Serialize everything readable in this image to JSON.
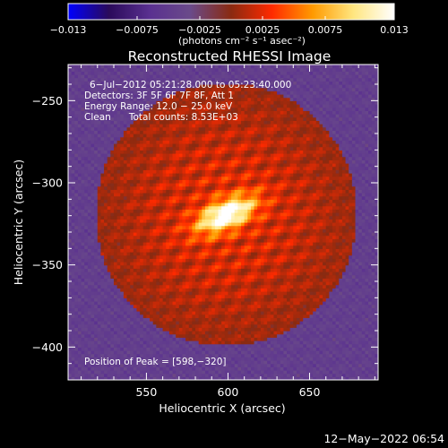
{
  "chart_data": {
    "type": "heatmap",
    "title": "Reconstructed RHESSI Image",
    "xlabel": "Heliocentric X (arcsec)",
    "ylabel": "Heliocentric Y (arcsec)",
    "xlim": [
      502,
      692
    ],
    "ylim": [
      -420,
      -228
    ],
    "x_ticks": [
      550,
      600,
      650
    ],
    "y_ticks": [
      -250,
      -300,
      -350,
      -400
    ],
    "colorbar": {
      "min": -0.013,
      "max": 0.013,
      "tick_values": [
        -0.013,
        -0.0075,
        -0.0025,
        0.0025,
        0.0075,
        0.013
      ],
      "tick_labels": [
        "−0.013",
        "−0.0075",
        "−0.0025",
        "0.0025",
        "0.0075",
        "0.013"
      ],
      "units_label": "(photons cm⁻² s⁻¹ asec⁻²)"
    },
    "annotations": {
      "time_range": "6−Jul−2012 05:21:28.000 to 05:23:40.000",
      "detectors": "Detectors: 3F 5F 6F 7F 8F, Att 1",
      "energy_range": "Energy Range: 12.0 − 25.0 keV",
      "method_counts": "Clean      Total counts: 8.53E+03",
      "peak_label": "Position of Peak = [598,−320]"
    },
    "peak": [
      598,
      -320
    ],
    "timestamp": "12−May−2022 06:54",
    "colors": {
      "background": "#000000",
      "colormap": [
        "#0000ff",
        "#2a0a5a",
        "#5a3090",
        "#6a4a8a",
        "#8a2a10",
        "#ff2a00",
        "#ff9a00",
        "#ffe680",
        "#ffffff"
      ]
    }
  }
}
